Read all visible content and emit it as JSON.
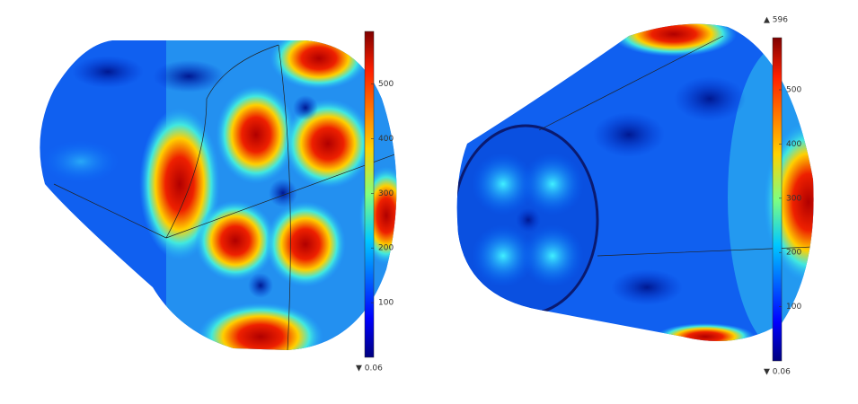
{
  "panels": [
    {
      "colorbar": {
        "range": [
          0.06,
          596
        ],
        "ticks": [
          100,
          200,
          300,
          400,
          500
        ],
        "min_label": "▼ 0.06"
      }
    },
    {
      "colorbar": {
        "range": [
          0.06,
          596
        ],
        "ticks": [
          100,
          200,
          300,
          400,
          500
        ],
        "min_label": "▼ 0.06",
        "max_label": "▲ 596"
      }
    }
  ]
}
